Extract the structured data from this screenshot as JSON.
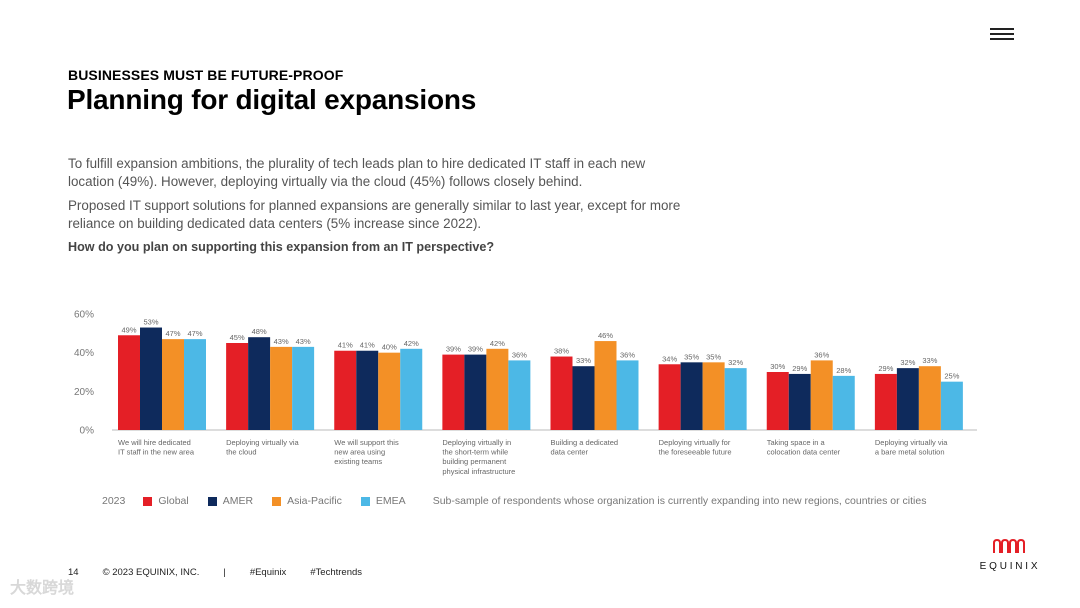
{
  "header": {
    "kicker": "BUSINESSES MUST BE FUTURE-PROOF",
    "title": "Planning for digital expansions",
    "paragraph1": "To fulfill expansion ambitions, the plurality of tech leads plan to hire dedicated IT staff in each new location (49%). However, deploying virtually via the cloud (45%) follows closely behind.",
    "paragraph2": "Proposed IT support solutions for planned expansions are generally similar to last year, except for more reliance on building dedicated data centers (5% increase since 2022).",
    "question": "How do you plan on supporting this expansion from an IT perspective?"
  },
  "menu_icon": "hamburger-menu-icon",
  "colors": {
    "Global": "#e41f26",
    "AMER": "#0e2a5c",
    "Asia-Pacific": "#f39026",
    "EMEA": "#4cb8e6"
  },
  "chart_data": {
    "type": "bar",
    "ylim": [
      0,
      60
    ],
    "yticks": [
      "0%",
      "20%",
      "40%",
      "60%"
    ],
    "categories": [
      [
        "We will hire dedicated",
        "IT staff in the new area"
      ],
      [
        "Deploying virtually via",
        "the cloud"
      ],
      [
        "We will support this",
        "new area using",
        "existing teams"
      ],
      [
        "Deploying virtually in",
        "the short-term while",
        "building permanent",
        "physical infrastructure"
      ],
      [
        "Building a dedicated",
        "data center"
      ],
      [
        "Deploying virtually for",
        "the foreseeable future"
      ],
      [
        "Taking space in a",
        "colocation data center"
      ],
      [
        "Deploying virtually via",
        "a bare metal solution"
      ]
    ],
    "series": [
      {
        "name": "Global",
        "values": [
          49,
          45,
          41,
          39,
          38,
          34,
          30,
          29
        ]
      },
      {
        "name": "AMER",
        "values": [
          53,
          48,
          41,
          39,
          33,
          35,
          29,
          32
        ]
      },
      {
        "name": "Asia-Pacific",
        "values": [
          47,
          43,
          40,
          42,
          46,
          35,
          36,
          33
        ]
      },
      {
        "name": "EMEA",
        "values": [
          47,
          43,
          42,
          36,
          36,
          32,
          28,
          25
        ]
      }
    ]
  },
  "legend": {
    "year": "2023",
    "items": [
      "Global",
      "AMER",
      "Asia-Pacific",
      "EMEA"
    ],
    "note": "Sub-sample of respondents whose organization is currently expanding into new regions, countries or cities"
  },
  "footer": {
    "page": "14",
    "copyright": "© 2023 EQUINIX, INC.",
    "separator": "|",
    "tag1": "#Equinix",
    "tag2": "#Techtrends"
  },
  "logo": {
    "word": "EQUINIX",
    "icon": "equinix-logo-icon"
  },
  "watermark": "大数跨境"
}
